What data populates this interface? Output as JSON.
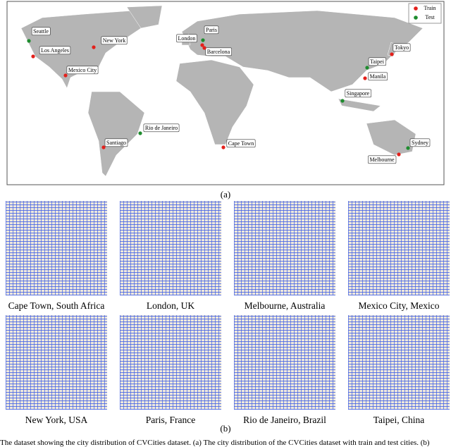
{
  "map": {
    "legend": [
      {
        "name": "Train",
        "color": "#e3201b",
        "cities": [
          "Los Angeles",
          "New York",
          "Mexico City",
          "Santiago",
          "London",
          "Barcelona",
          "Cape Town",
          "Tokyo",
          "Manila",
          "Melbourne"
        ]
      },
      {
        "name": "Test",
        "color": "#1e8c2e",
        "cities": [
          "Seattle",
          "Rio de Janeiro",
          "Paris",
          "Taipei",
          "Singapore",
          "Sydney"
        ]
      }
    ]
  },
  "subcaption_a": "(a)",
  "panels": [
    "Cape Town, South Africa",
    "London, UK",
    "Melbourne, Australia",
    "Mexico City, Mexico",
    "New York, USA",
    "Paris, France",
    "Rio de Janeiro, Brazil",
    "Taipei, China"
  ],
  "subcaption_b": "(b)",
  "caption": "The dataset showing the city distribution of CVCities dataset. (a) The city distribution of the CVCities dataset with train and test cities. (b)"
}
